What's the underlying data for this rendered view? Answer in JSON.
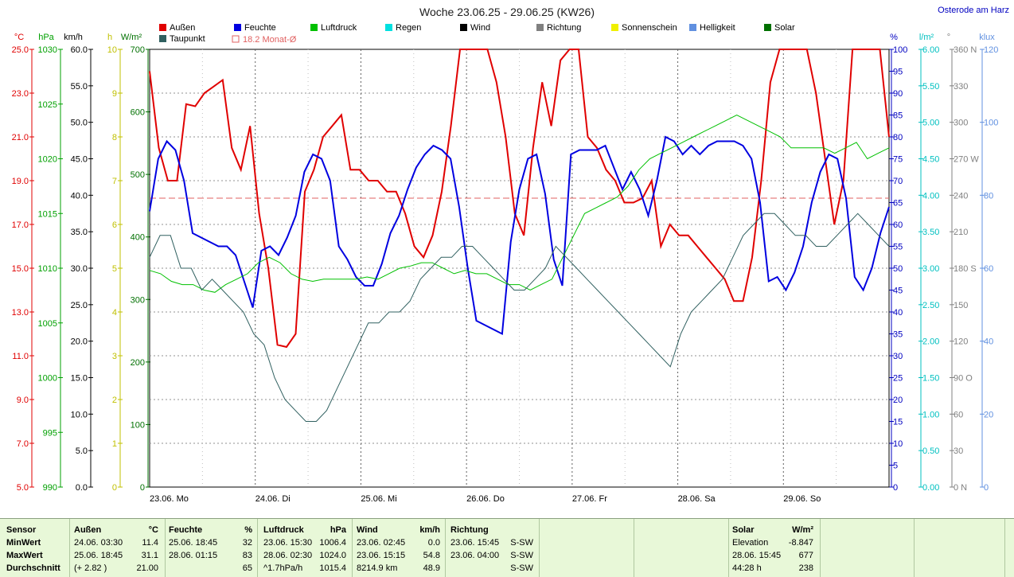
{
  "header": {
    "title": "Woche 23.06.25 - 29.06.25 (KW26)",
    "location": "Osterode am Harz"
  },
  "legend": {
    "items": [
      {
        "label": "Außen",
        "color": "#e00000"
      },
      {
        "label": "Feuchte",
        "color": "#0000e0"
      },
      {
        "label": "Luftdruck",
        "color": "#00c000"
      },
      {
        "label": "Regen",
        "color": "#00e0e0"
      },
      {
        "label": "Wind",
        "color": "#000000"
      },
      {
        "label": "Richtung",
        "color": "#808080"
      },
      {
        "label": "Sonnenschein",
        "color": "#f0f000"
      },
      {
        "label": "Helligkeit",
        "color": "#6090e0"
      },
      {
        "label": "Solar",
        "color": "#007000"
      },
      {
        "label": "Taupunkt",
        "color": "#306060"
      }
    ],
    "monthly_avg": "18.2 Monat-Ø"
  },
  "chart_data": {
    "type": "line",
    "x_labels": [
      "23.06. Mo",
      "24.06. Di",
      "25.06. Mi",
      "26.06. Do",
      "27.06. Fr",
      "28.06. Sa",
      "29.06. So"
    ],
    "axes": {
      "temp": {
        "unit": "°C",
        "ticks": [
          "25.0",
          "23.0",
          "21.0",
          "19.0",
          "17.0",
          "15.0",
          "13.0",
          "11.0",
          "9.0",
          "7.0",
          "5.0"
        ],
        "range": [
          5,
          25
        ]
      },
      "pressure": {
        "unit": "hPa",
        "ticks": [
          "1030",
          "1025",
          "1020",
          "1015",
          "1010",
          "1005",
          "1000",
          "995",
          "990"
        ],
        "range": [
          990,
          1030
        ]
      },
      "wind": {
        "unit": "km/h",
        "ticks": [
          "60.0",
          "55.0",
          "50.0",
          "45.0",
          "40.0",
          "35.0",
          "30.0",
          "25.0",
          "20.0",
          "15.0",
          "10.0",
          "5.0",
          "0.0"
        ],
        "range": [
          0,
          60
        ]
      },
      "sunshine": {
        "unit": "h",
        "ticks": [
          "10",
          "9",
          "8",
          "7",
          "6",
          "5",
          "4",
          "3",
          "2",
          "1",
          "0"
        ],
        "range": [
          0,
          10
        ]
      },
      "solar": {
        "unit": "W/m²",
        "ticks": [
          "700",
          "600",
          "500",
          "400",
          "300",
          "200",
          "100",
          "0"
        ],
        "range": [
          0,
          700
        ]
      },
      "humidity": {
        "unit": "%",
        "ticks": [
          "100",
          "95",
          "90",
          "85",
          "80",
          "75",
          "70",
          "65",
          "60",
          "55",
          "50",
          "45",
          "40",
          "35",
          "30",
          "25",
          "20",
          "15",
          "10",
          "5",
          "0"
        ],
        "range": [
          0,
          100
        ]
      },
      "rain": {
        "unit": "l/m²",
        "ticks": [
          "6.00",
          "5.50",
          "5.00",
          "4.50",
          "4.00",
          "3.50",
          "3.00",
          "2.50",
          "2.00",
          "1.50",
          "1.00",
          "0.50",
          "0.00"
        ],
        "range": [
          0,
          6
        ]
      },
      "direction": {
        "unit": "°",
        "ticks": [
          "360 N",
          "330",
          "300",
          "270 W",
          "240",
          "210",
          "180 S",
          "150",
          "120",
          "90 O",
          "60",
          "30",
          "0 N"
        ],
        "range": [
          0,
          360
        ]
      },
      "brightness": {
        "unit": "klux",
        "ticks": [
          "120",
          "100",
          "80",
          "60",
          "40",
          "20",
          "0"
        ],
        "range": [
          0,
          120
        ]
      }
    },
    "series": [
      {
        "name": "Außen",
        "axis": "temp",
        "values": [
          24.0,
          20.5,
          19.0,
          19.0,
          22.5,
          22.4,
          23.0,
          23.3,
          23.6,
          20.5,
          19.5,
          21.5,
          17.5,
          15.0,
          11.5,
          11.4,
          12.0,
          18.5,
          19.5,
          21.0,
          21.5,
          22.0,
          19.5,
          19.5,
          19.0,
          19.0,
          18.5,
          18.5,
          17.5,
          16.0,
          15.5,
          16.5,
          18.5,
          21.5,
          25.5,
          30.5,
          31.1,
          25.5,
          23.5,
          21.0,
          17.5,
          16.5,
          20.5,
          23.5,
          21.5,
          24.5,
          30.5,
          28.0,
          21.0,
          20.5,
          19.5,
          19.0,
          18.0,
          18.0,
          18.2,
          19.0,
          16.0,
          17.0,
          16.5,
          16.5,
          16.0,
          15.5,
          15.0,
          14.5,
          13.5,
          13.5,
          15.5,
          19.0,
          23.5,
          27.5,
          30.5,
          30.0,
          28.0,
          23.0,
          20.0,
          17.0,
          19.0,
          25.0,
          27.5,
          30.0,
          26.0,
          21.0
        ]
      },
      {
        "name": "Feuchte",
        "axis": "humidity",
        "values": [
          63,
          75,
          79,
          77,
          70,
          58,
          57,
          56,
          55,
          55,
          53,
          47,
          41,
          54,
          55,
          53,
          57,
          62,
          72,
          76,
          75,
          70,
          55,
          52,
          48,
          46,
          46,
          51,
          58,
          62,
          68,
          73,
          76,
          78,
          77,
          75,
          64,
          50,
          38,
          37,
          36,
          35,
          56,
          68,
          75,
          76,
          67,
          52,
          46,
          76,
          77,
          77,
          77,
          78,
          73,
          68,
          72,
          68,
          62,
          70,
          80,
          79,
          76,
          78,
          76,
          78,
          79,
          79,
          79,
          78,
          75,
          65,
          47,
          48,
          45,
          49,
          55,
          65,
          72,
          76,
          75,
          66,
          48,
          45,
          50,
          58,
          64
        ]
      },
      {
        "name": "Luftdruck",
        "axis": "pressure",
        "values": [
          1009.8,
          1009.5,
          1008.8,
          1008.5,
          1008.5,
          1008.0,
          1007.8,
          1008.5,
          1009.0,
          1009.5,
          1010.5,
          1011.0,
          1010.5,
          1009.5,
          1009.0,
          1008.8,
          1009.0,
          1009.0,
          1009.0,
          1009.0,
          1009.2,
          1009.0,
          1009.5,
          1010.0,
          1010.2,
          1010.5,
          1010.5,
          1010.0,
          1009.5,
          1009.8,
          1009.5,
          1009.5,
          1009.0,
          1008.5,
          1008.5,
          1008.0,
          1008.5,
          1009.0,
          1011.0,
          1013.0,
          1015.0,
          1015.5,
          1016.0,
          1016.5,
          1017.5,
          1019.0,
          1020.0,
          1020.5,
          1021.0,
          1021.5,
          1022.0,
          1022.5,
          1023.0,
          1023.5,
          1024.0,
          1023.5,
          1023.0,
          1022.5,
          1022.0,
          1021.0,
          1021.0,
          1021.0,
          1021.0,
          1020.5,
          1021.0,
          1021.5,
          1020.0,
          1020.5,
          1021.0
        ]
      },
      {
        "name": "Taupunkt",
        "axis": "temp",
        "values": [
          15.5,
          16.5,
          16.5,
          15.0,
          15.0,
          14.0,
          14.5,
          14.0,
          13.5,
          13.0,
          12.0,
          11.5,
          10.0,
          9.0,
          8.5,
          8.0,
          8.0,
          8.5,
          9.5,
          10.5,
          11.5,
          12.5,
          12.5,
          13.0,
          13.0,
          13.5,
          14.5,
          15.0,
          15.5,
          15.5,
          16.0,
          16.0,
          15.5,
          15.0,
          14.5,
          14.0,
          14.0,
          14.5,
          15.0,
          16.0,
          15.5,
          15.0,
          14.5,
          14.0,
          13.5,
          13.0,
          12.5,
          12.0,
          11.5,
          11.0,
          10.5,
          12.0,
          13.0,
          13.5,
          14.0,
          14.5,
          15.5,
          16.5,
          17.0,
          17.5,
          17.5,
          17.0,
          16.5,
          16.5,
          16.0,
          16.0,
          16.5,
          17.0,
          17.5,
          17.0,
          16.5,
          16.0
        ]
      }
    ],
    "horizontal_lines": [
      {
        "label": "18.2 Monat-Ø",
        "axis": "temp",
        "value": 18.2
      }
    ]
  },
  "table": {
    "sensor": {
      "header": "Sensor",
      "rows": [
        "MinWert",
        "MaxWert",
        "Durchschnitt"
      ]
    },
    "aussen": {
      "header": "Außen",
      "unit": "°C",
      "rows": [
        [
          "24.06. 03:30",
          "11.4"
        ],
        [
          "25.06. 18:45",
          "31.1"
        ],
        [
          "(+ 2.82 )",
          "21.00"
        ]
      ]
    },
    "feuchte": {
      "header": "Feuchte",
      "unit": "%",
      "rows": [
        [
          "25.06. 18:45",
          "32"
        ],
        [
          "28.06. 01:15",
          "83"
        ],
        [
          "",
          "65"
        ]
      ]
    },
    "luftdruck": {
      "header": "Luftdruck",
      "unit": "hPa",
      "rows": [
        [
          "23.06. 15:30",
          "1006.4"
        ],
        [
          "28.06. 02:30",
          "1024.0"
        ],
        [
          "^1.7hPa/h",
          "1015.4"
        ]
      ]
    },
    "wind": {
      "header": "Wind",
      "unit": "km/h",
      "rows": [
        [
          "23.06. 02:45",
          "0.0"
        ],
        [
          "23.06. 15:15",
          "54.8"
        ],
        [
          "8214.9 km",
          "48.9"
        ]
      ]
    },
    "richtung": {
      "header": "Richtung",
      "rows": [
        [
          "23.06. 15:45",
          "S-SW"
        ],
        [
          "23.06. 04:00",
          "S-SW"
        ],
        [
          "",
          "S-SW"
        ]
      ]
    },
    "solar": {
      "header": "Solar",
      "unit": "W/m²",
      "rows": [
        [
          "Elevation",
          "-8.847"
        ],
        [
          "28.06. 15:45",
          "677"
        ],
        [
          "44:28 h",
          "238"
        ]
      ]
    }
  }
}
